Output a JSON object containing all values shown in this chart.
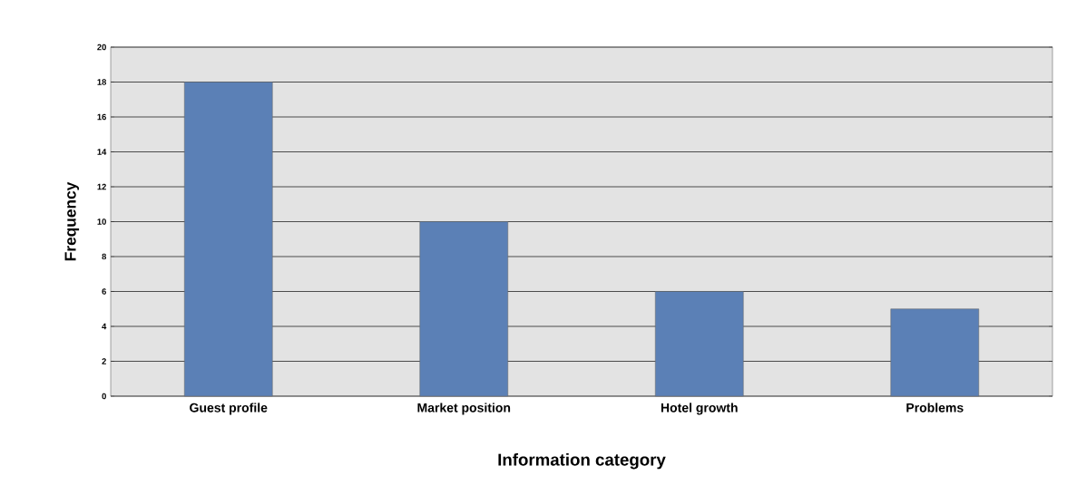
{
  "chart_data": {
    "type": "bar",
    "xlabel": "Information category",
    "ylabel": "Frequency",
    "categories": [
      "Guest profile",
      "Market position",
      "Hotel growth",
      "Problems"
    ],
    "values": [
      18,
      10,
      6,
      5
    ],
    "color": "#5b80b6",
    "ylim": [
      0,
      20
    ],
    "yticks": [
      0,
      2,
      4,
      6,
      8,
      10,
      12,
      14,
      16,
      18,
      20
    ],
    "grid": "y"
  }
}
